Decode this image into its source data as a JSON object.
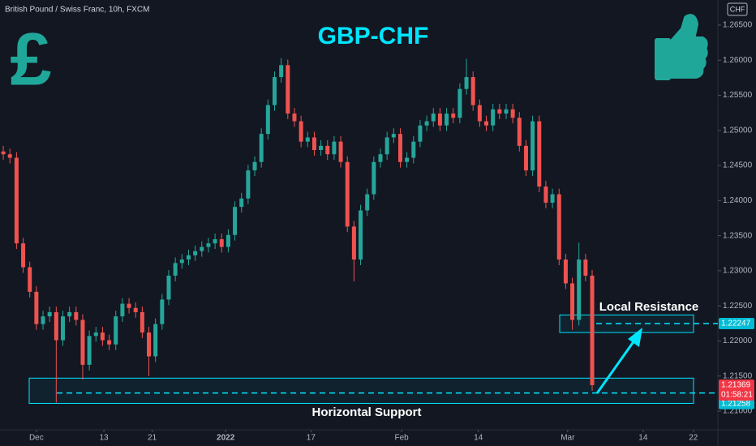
{
  "header": "British Pound / Swiss Franc, 10h, FXCM",
  "chart_data": {
    "type": "candlestick",
    "title": "GBP-CHF",
    "currency": "CHF",
    "up_color": "#26a69a",
    "down_color": "#ef5350",
    "open": [
      1.247,
      1.2466,
      1.2461,
      1.2339,
      1.2305,
      1.227,
      1.2224,
      1.2235,
      1.2241,
      1.2201,
      1.2235,
      1.2241,
      1.223,
      1.2166,
      1.2207,
      1.2212,
      1.2201,
      1.2195,
      1.2235,
      1.2253,
      1.2247,
      1.2241,
      1.2212,
      1.2178,
      1.2224,
      1.2259,
      1.2293,
      1.2311,
      1.2316,
      1.2322,
      1.2328,
      1.2334,
      1.2339,
      1.2345,
      1.2334,
      1.2351,
      1.2391,
      1.2403,
      1.2443,
      1.2455,
      1.2495,
      1.2536,
      1.2576,
      1.2593,
      1.2524,
      1.2513,
      1.2484,
      1.249,
      1.2472,
      1.2478,
      1.2466,
      1.2484,
      1.2455,
      1.2363,
      1.2316,
      1.2386,
      1.2409,
      1.2455,
      1.2466,
      1.249,
      1.2495,
      1.2455,
      1.2461,
      1.2484,
      1.2507,
      1.2513,
      1.2524,
      1.2507,
      1.2524,
      1.2518,
      1.2559,
      1.2576,
      1.2536,
      1.2513,
      1.2507,
      1.253,
      1.2524,
      1.253,
      1.2518,
      1.2478,
      1.2443,
      1.2513,
      1.242,
      1.2397,
      1.2409,
      1.2316,
      1.2282,
      1.223,
      1.2316,
      1.2293
    ],
    "high": [
      1.2478,
      1.2474,
      1.2469,
      1.2347,
      1.2313,
      1.2278,
      1.2243,
      1.2249,
      1.2249,
      1.2243,
      1.2249,
      1.2249,
      1.2238,
      1.2215,
      1.222,
      1.222,
      1.2209,
      1.2243,
      1.2261,
      1.2261,
      1.2255,
      1.2249,
      1.222,
      1.2232,
      1.2267,
      1.2301,
      1.2319,
      1.2324,
      1.233,
      1.2336,
      1.2342,
      1.2347,
      1.2353,
      1.2353,
      1.2359,
      1.2399,
      1.2411,
      1.2451,
      1.2463,
      1.2503,
      1.2544,
      1.2584,
      1.2603,
      1.2601,
      1.2532,
      1.2521,
      1.2498,
      1.2498,
      1.2486,
      1.2486,
      1.2492,
      1.2492,
      1.2463,
      1.2371,
      1.2394,
      1.2417,
      1.2463,
      1.2474,
      1.2498,
      1.2503,
      1.2503,
      1.2469,
      1.2492,
      1.2515,
      1.2521,
      1.2532,
      1.2532,
      1.2532,
      1.2532,
      1.2567,
      1.2602,
      1.2584,
      1.2544,
      1.2521,
      1.2538,
      1.2538,
      1.2538,
      1.2538,
      1.2526,
      1.2486,
      1.2521,
      1.2521,
      1.2428,
      1.2417,
      1.2417,
      1.2324,
      1.229,
      1.234,
      1.2324,
      1.2301
    ],
    "low": [
      1.2458,
      1.2453,
      1.2331,
      1.2297,
      1.2262,
      1.2216,
      1.2216,
      1.2227,
      1.2112,
      1.2193,
      1.2227,
      1.2222,
      1.2145,
      1.2158,
      1.2199,
      1.2193,
      1.2187,
      1.2187,
      1.2227,
      1.2239,
      1.2233,
      1.2204,
      1.215,
      1.217,
      1.2216,
      1.2251,
      1.2285,
      1.2303,
      1.2308,
      1.2314,
      1.232,
      1.2326,
      1.2331,
      1.2326,
      1.2326,
      1.2343,
      1.2383,
      1.2395,
      1.2435,
      1.2447,
      1.2487,
      1.2528,
      1.2568,
      1.2516,
      1.2505,
      1.2476,
      1.2476,
      1.2464,
      1.2464,
      1.2458,
      1.2458,
      1.2447,
      1.2355,
      1.2285,
      1.2308,
      1.2378,
      1.2401,
      1.2447,
      1.2458,
      1.2482,
      1.2447,
      1.2447,
      1.2453,
      1.2476,
      1.2499,
      1.2505,
      1.2499,
      1.2499,
      1.251,
      1.251,
      1.2551,
      1.2528,
      1.2505,
      1.2499,
      1.2499,
      1.2516,
      1.2516,
      1.251,
      1.247,
      1.2435,
      1.2435,
      1.2412,
      1.2389,
      1.2389,
      1.2308,
      1.2274,
      1.2216,
      1.2222,
      1.2285,
      1.2129
    ],
    "close": [
      1.2466,
      1.2461,
      1.2339,
      1.2305,
      1.227,
      1.2224,
      1.2235,
      1.2241,
      1.2201,
      1.2235,
      1.2241,
      1.223,
      1.2166,
      1.2207,
      1.2212,
      1.2201,
      1.2195,
      1.2235,
      1.2253,
      1.2247,
      1.2241,
      1.2212,
      1.2178,
      1.2224,
      1.2259,
      1.2293,
      1.2311,
      1.2316,
      1.2322,
      1.2328,
      1.2334,
      1.2339,
      1.2345,
      1.2334,
      1.2351,
      1.2391,
      1.2403,
      1.2443,
      1.2455,
      1.2495,
      1.2536,
      1.2576,
      1.2593,
      1.2524,
      1.2513,
      1.2484,
      1.249,
      1.2472,
      1.2478,
      1.2466,
      1.2484,
      1.2455,
      1.2363,
      1.2316,
      1.2386,
      1.2409,
      1.2455,
      1.2466,
      1.249,
      1.2495,
      1.2455,
      1.2461,
      1.2484,
      1.2507,
      1.2513,
      1.2524,
      1.2507,
      1.2524,
      1.2518,
      1.2559,
      1.2576,
      1.2536,
      1.2513,
      1.2507,
      1.253,
      1.2524,
      1.253,
      1.2518,
      1.2478,
      1.2443,
      1.2513,
      1.242,
      1.2397,
      1.2409,
      1.2316,
      1.2282,
      1.223,
      1.2316,
      1.2293,
      1.2137
    ],
    "xlim": [
      -0.5,
      108
    ],
    "xticks": [
      {
        "value": 5,
        "label": "Dec"
      },
      {
        "value": 15.2,
        "label": "13"
      },
      {
        "value": 22.5,
        "label": "21"
      },
      {
        "value": 33.6,
        "label": "2022"
      },
      {
        "value": 46.5,
        "label": "17"
      },
      {
        "value": 60.2,
        "label": "Feb"
      },
      {
        "value": 71.8,
        "label": "14"
      },
      {
        "value": 85.3,
        "label": "Mar"
      },
      {
        "value": 96.7,
        "label": "14"
      },
      {
        "value": 104.3,
        "label": "22"
      }
    ],
    "ylim": [
      1.20734,
      1.26858
    ],
    "yticks": [
      {
        "value": 1.21,
        "label": "1.21000"
      },
      {
        "value": 1.215,
        "label": "1.21500"
      },
      {
        "value": 1.22,
        "label": "1.22000"
      },
      {
        "value": 1.225,
        "label": "1.22500"
      },
      {
        "value": 1.23,
        "label": "1.23000"
      },
      {
        "value": 1.235,
        "label": "1.23500"
      },
      {
        "value": 1.24,
        "label": "1.24000"
      },
      {
        "value": 1.245,
        "label": "1.24500"
      },
      {
        "value": 1.25,
        "label": "1.25000"
      },
      {
        "value": 1.255,
        "label": "1.25500"
      },
      {
        "value": 1.26,
        "label": "1.26000"
      },
      {
        "value": 1.265,
        "label": "1.26500"
      }
    ],
    "grid": false,
    "annotations": {
      "resistance": {
        "label": "Local Resistance",
        "level": 1.22247,
        "zone": [
          1.2212,
          1.2237
        ]
      },
      "support": {
        "label": "Horizontal Support",
        "level": 1.21258,
        "zone": [
          1.2111,
          1.2147
        ]
      },
      "last_price": 1.21369,
      "countdown": "01:58:21",
      "symbol_icon": "£"
    }
  }
}
